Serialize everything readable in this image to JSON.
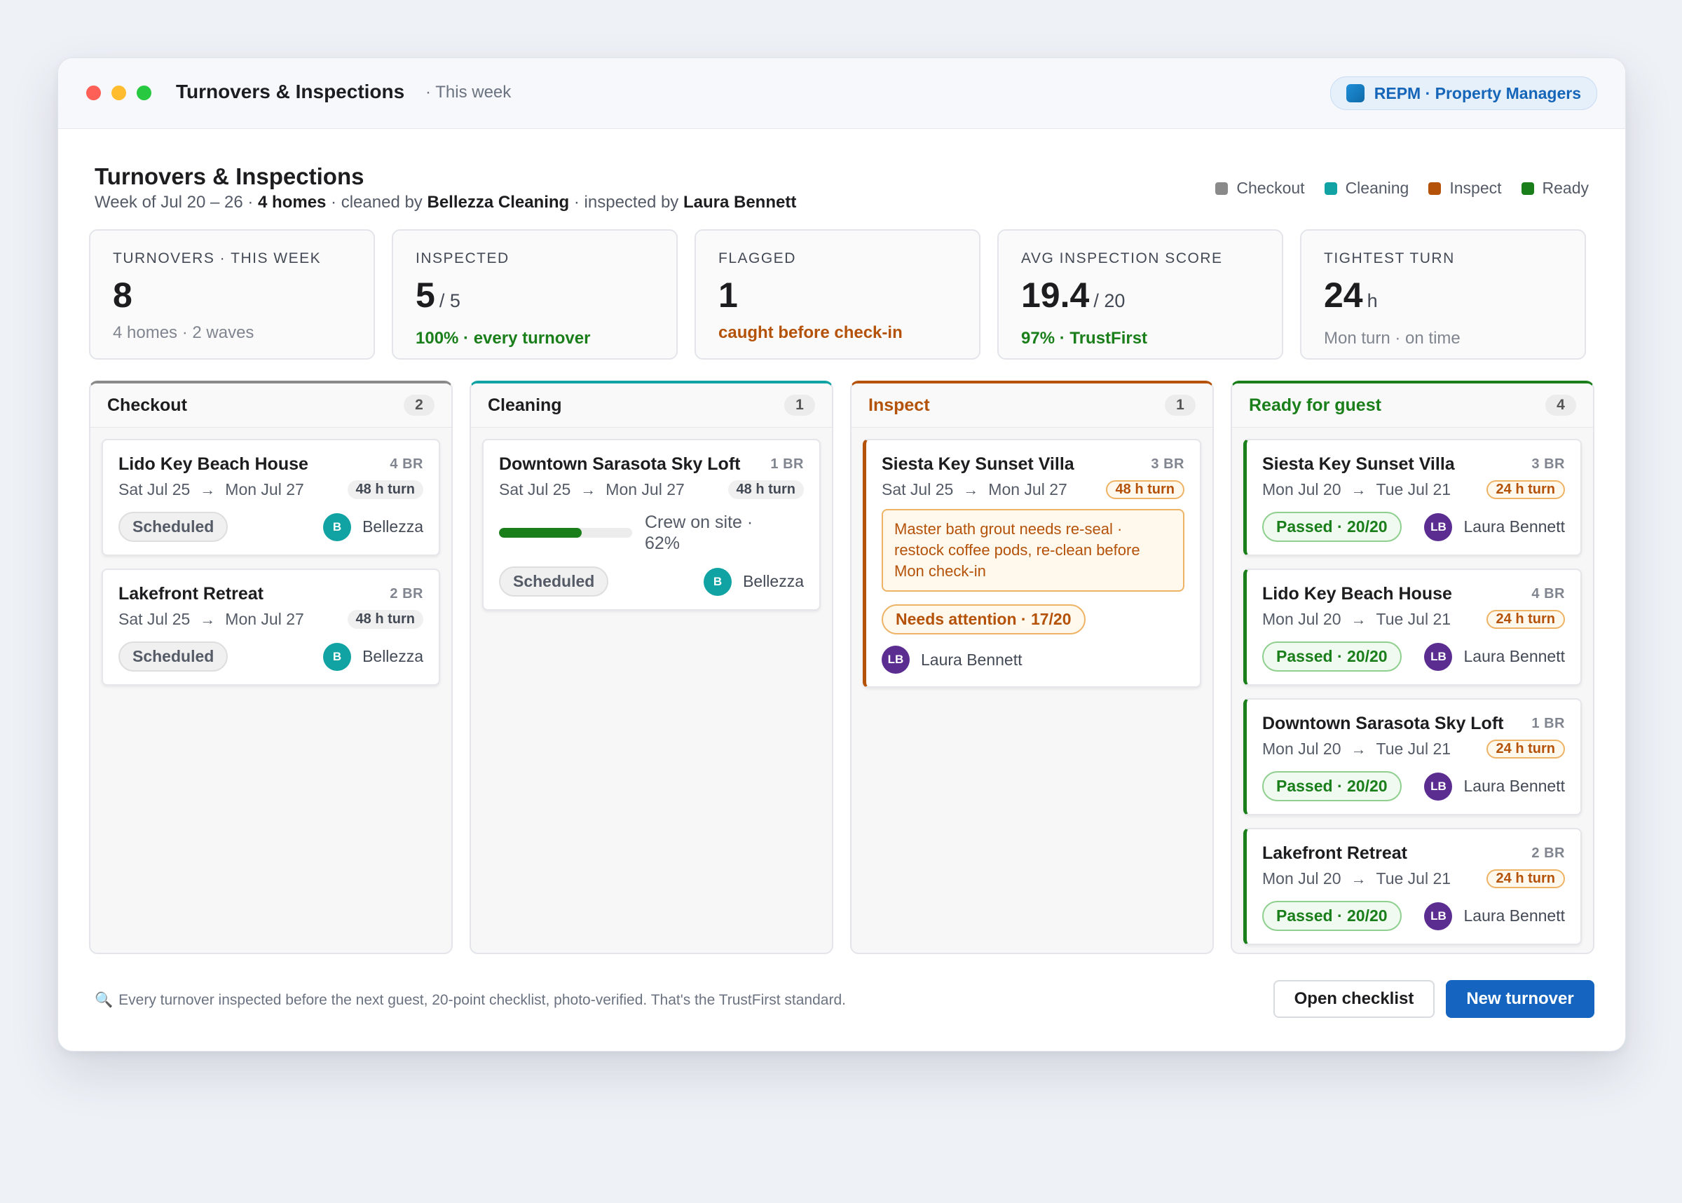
{
  "window": {
    "title": "Turnovers & Inspections",
    "subtitle": "· This week",
    "org_label": "REPM · Property Managers"
  },
  "page": {
    "title": "Turnovers & Inspections",
    "sub_week": "Week of Jul 20 – 26 · ",
    "sub_homes": "4 homes",
    "sub_cleaned": " · cleaned by ",
    "sub_cleaner": "Bellezza Cleaning",
    "sub_inspected": " · inspected by ",
    "sub_inspector": "Laura Bennett"
  },
  "legend": [
    {
      "label": "Checkout",
      "color": "#8a8a8a"
    },
    {
      "label": "Cleaning",
      "color": "#11a3a3"
    },
    {
      "label": "Inspect",
      "color": "#b4520a"
    },
    {
      "label": "Ready",
      "color": "#1a7f1a"
    }
  ],
  "stats": [
    {
      "label": "TURNOVERS · THIS WEEK",
      "value": "8",
      "of": "",
      "unit": "",
      "note": "4 homes · 2 waves",
      "tone": "gray"
    },
    {
      "label": "INSPECTED",
      "value": "5",
      "of": "/ 5",
      "unit": "",
      "note": "100% · every turnover",
      "tone": "green"
    },
    {
      "label": "FLAGGED",
      "value": "1",
      "of": "",
      "unit": "",
      "note": "caught before check-in",
      "tone": "orange"
    },
    {
      "label": "AVG INSPECTION SCORE",
      "value": "19.4",
      "of": "/ 20",
      "unit": "",
      "note": "97% · TrustFirst",
      "tone": "green"
    },
    {
      "label": "TIGHTEST TURN",
      "value": "24",
      "of": "",
      "unit": "h",
      "note": "Mon turn · on time",
      "tone": "gray"
    }
  ],
  "columns": {
    "checkout": {
      "title": "Checkout",
      "count": "2",
      "color": "#8a8a8a",
      "cards": [
        {
          "name": "Lido Key Beach House",
          "br": "4 BR",
          "from": "Sat Jul 25",
          "to": "Mon Jul 27",
          "turn": "48 h turn",
          "status": "Scheduled",
          "avatar": "B",
          "person": "Bellezza"
        },
        {
          "name": "Lakefront Retreat",
          "br": "2 BR",
          "from": "Sat Jul 25",
          "to": "Mon Jul 27",
          "turn": "48 h turn",
          "status": "Scheduled",
          "avatar": "B",
          "person": "Bellezza"
        }
      ]
    },
    "cleaning": {
      "title": "Cleaning",
      "count": "1",
      "color": "#11a3a3",
      "cards": [
        {
          "name": "Downtown Sarasota Sky Loft",
          "br": "1 BR",
          "from": "Sat Jul 25",
          "to": "Mon Jul 27",
          "turn": "48 h turn",
          "progress": 0.62,
          "progress_text": "Crew on site · 62%",
          "status": "Scheduled",
          "avatar": "B",
          "person": "Bellezza"
        }
      ]
    },
    "inspect": {
      "title": "Inspect",
      "count": "1",
      "color": "#b4520a",
      "cards": [
        {
          "name": "Siesta Key Sunset Villa",
          "br": "3 BR",
          "from": "Sat Jul 25",
          "to": "Mon Jul 27",
          "turn": "48 h turn",
          "note": "Master bath grout needs re-seal · restock coffee pods, re-clean before Mon check-in",
          "status": "Needs attention · 17/20",
          "avatar": "LB",
          "person": "Laura Bennett"
        }
      ]
    },
    "ready": {
      "title": "Ready for guest",
      "count": "4",
      "color": "#1a7f1a",
      "cards": [
        {
          "name": "Siesta Key Sunset Villa",
          "br": "3 BR",
          "from": "Mon Jul 20",
          "to": "Tue Jul 21",
          "turn": "24 h turn",
          "status": "Passed · 20/20",
          "avatar": "LB",
          "person": "Laura Bennett"
        },
        {
          "name": "Lido Key Beach House",
          "br": "4 BR",
          "from": "Mon Jul 20",
          "to": "Tue Jul 21",
          "turn": "24 h turn",
          "status": "Passed · 20/20",
          "avatar": "LB",
          "person": "Laura Bennett"
        },
        {
          "name": "Downtown Sarasota Sky Loft",
          "br": "1 BR",
          "from": "Mon Jul 20",
          "to": "Tue Jul 21",
          "turn": "24 h turn",
          "status": "Passed · 20/20",
          "avatar": "LB",
          "person": "Laura Bennett"
        },
        {
          "name": "Lakefront Retreat",
          "br": "2 BR",
          "from": "Mon Jul 20",
          "to": "Tue Jul 21",
          "turn": "24 h turn",
          "status": "Passed · 20/20",
          "avatar": "LB",
          "person": "Laura Bennett"
        }
      ]
    }
  },
  "footer": {
    "icon": "magnifier-icon",
    "note": "Every turnover inspected before the next guest, 20-point checklist, photo-verified. That's the TrustFirst standard.",
    "secondary_label": "Open checklist",
    "primary_label": "New turnover"
  },
  "arrow_glyph": "→"
}
